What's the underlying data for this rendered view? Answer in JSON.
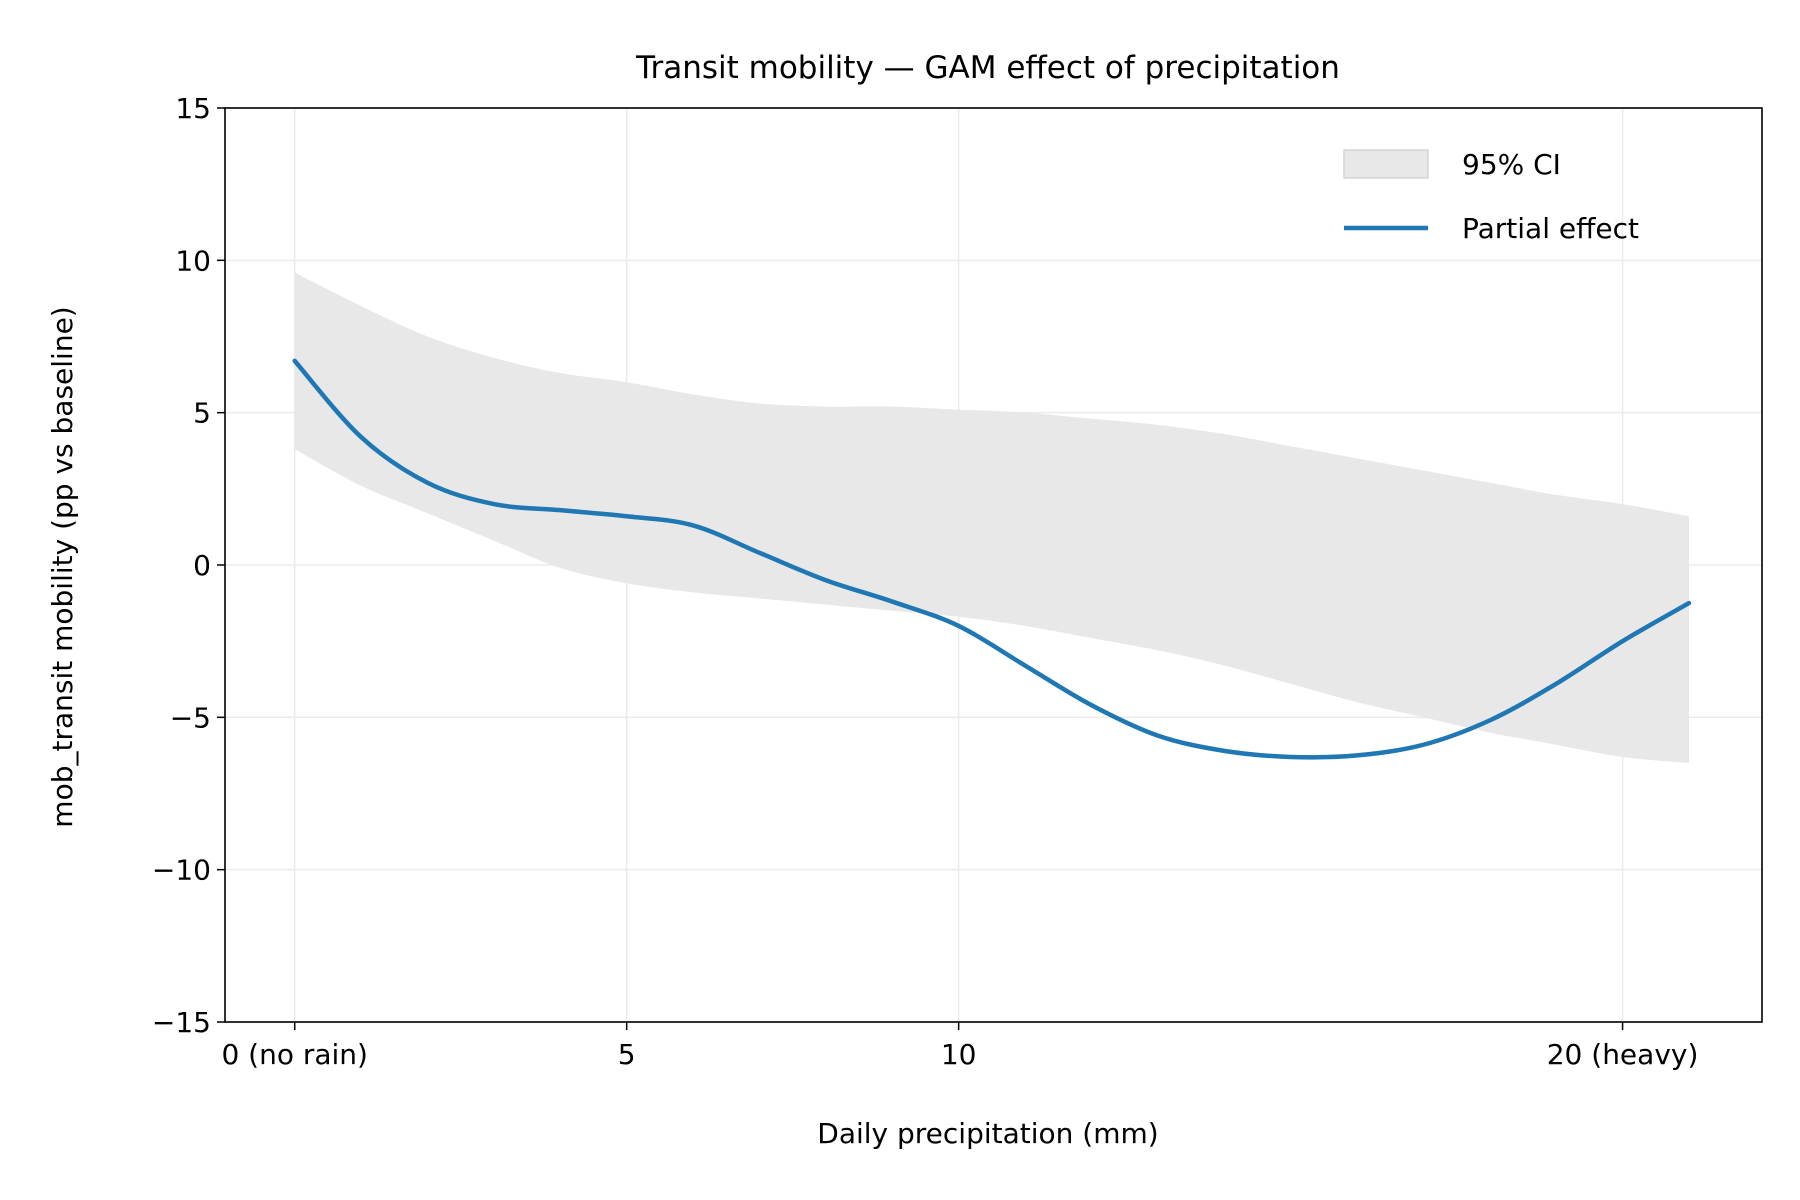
{
  "chart_data": {
    "type": "line",
    "title": "Transit mobility — GAM effect of precipitation",
    "xlabel": "Daily precipitation (mm)",
    "ylabel": "mob_transit mobility (pp vs baseline)",
    "xlim": [
      -1.05,
      22.1
    ],
    "ylim": [
      -15,
      15
    ],
    "x_ticks": [
      {
        "value": 0,
        "label": "0 (no rain)"
      },
      {
        "value": 5,
        "label": "5"
      },
      {
        "value": 10,
        "label": "10"
      },
      {
        "value": 20,
        "label": "20 (heavy)"
      }
    ],
    "y_ticks": [
      {
        "value": 15,
        "label": "15"
      },
      {
        "value": 10,
        "label": "10"
      },
      {
        "value": 5,
        "label": "5"
      },
      {
        "value": 0,
        "label": "0"
      },
      {
        "value": -5,
        "label": "−5"
      },
      {
        "value": -10,
        "label": "−10"
      },
      {
        "value": -15,
        "label": "−15"
      }
    ],
    "grid": true,
    "legend_position": "top-right",
    "series": [
      {
        "name": "Partial effect",
        "color": "#1f77b4",
        "x": [
          0,
          1,
          2,
          3,
          4,
          5,
          6,
          7,
          8,
          9,
          10,
          11,
          12,
          13,
          14,
          15,
          16,
          17,
          18,
          19,
          20,
          21
        ],
        "y": [
          6.7,
          4.2,
          2.7,
          2.0,
          1.8,
          1.6,
          1.3,
          0.4,
          -0.5,
          -1.2,
          -2.0,
          -3.3,
          -4.6,
          -5.6,
          -6.1,
          -6.3,
          -6.25,
          -5.9,
          -5.1,
          -3.9,
          -2.5,
          -1.25
        ]
      }
    ],
    "ci_band": {
      "name": "95% CI",
      "color": "#e8e8e8",
      "x": [
        0,
        1,
        2,
        3,
        4,
        5,
        6,
        7,
        8,
        9,
        10,
        11,
        12,
        13,
        14,
        15,
        16,
        17,
        18,
        19,
        20,
        21
      ],
      "upper": [
        9.6,
        8.5,
        7.5,
        6.8,
        6.3,
        6.0,
        5.6,
        5.3,
        5.2,
        5.2,
        5.1,
        5.0,
        4.8,
        4.6,
        4.3,
        3.9,
        3.5,
        3.1,
        2.7,
        2.3,
        2.0,
        1.6
      ],
      "lower": [
        3.8,
        2.6,
        1.7,
        0.8,
        -0.1,
        -0.6,
        -0.9,
        -1.1,
        -1.3,
        -1.5,
        -1.7,
        -2.0,
        -2.4,
        -2.8,
        -3.3,
        -3.9,
        -4.5,
        -5.0,
        -5.5,
        -5.9,
        -6.3,
        -6.5
      ]
    }
  }
}
